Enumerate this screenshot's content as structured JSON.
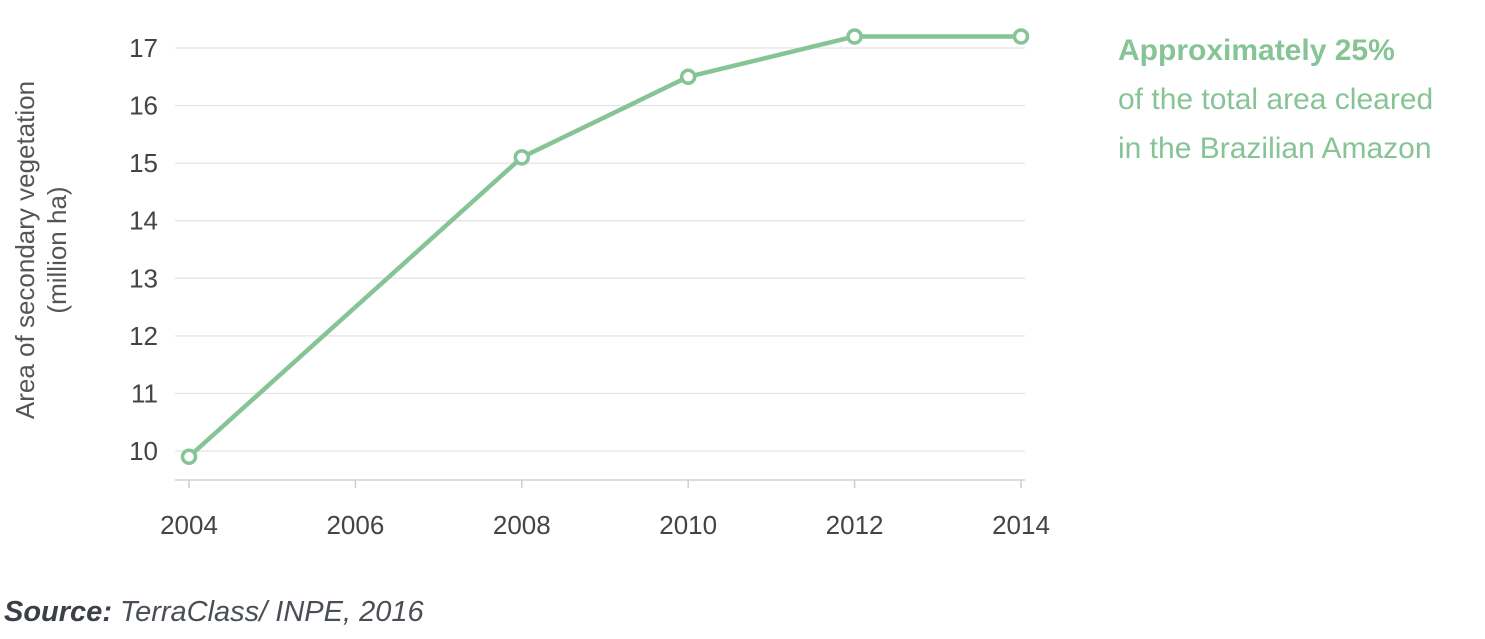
{
  "chart_data": {
    "type": "line",
    "x": [
      2004,
      2008,
      2010,
      2012,
      2014
    ],
    "series": [
      {
        "values": [
          9.9,
          15.1,
          16.5,
          17.2,
          17.2
        ]
      }
    ],
    "xticks": [
      "2004",
      "2006",
      "2008",
      "2010",
      "2012",
      "2014"
    ],
    "yticks": [
      "10",
      "11",
      "12",
      "13",
      "14",
      "15",
      "16",
      "17"
    ],
    "xlim": [
      2004,
      2014
    ],
    "ylim": [
      9.5,
      17.2
    ],
    "ylabel_line1": "Area of secondary vegetation",
    "ylabel_line2": "(million ha)",
    "grid": "horizontal",
    "line_color": "#86c495"
  },
  "annotation": {
    "bold_line": "Approximately 25%",
    "line2": "of the total area cleared",
    "line3": "in the Brazilian Amazon"
  },
  "source": {
    "label": "Source:",
    "text": " TerraClass/ INPE, 2016"
  }
}
